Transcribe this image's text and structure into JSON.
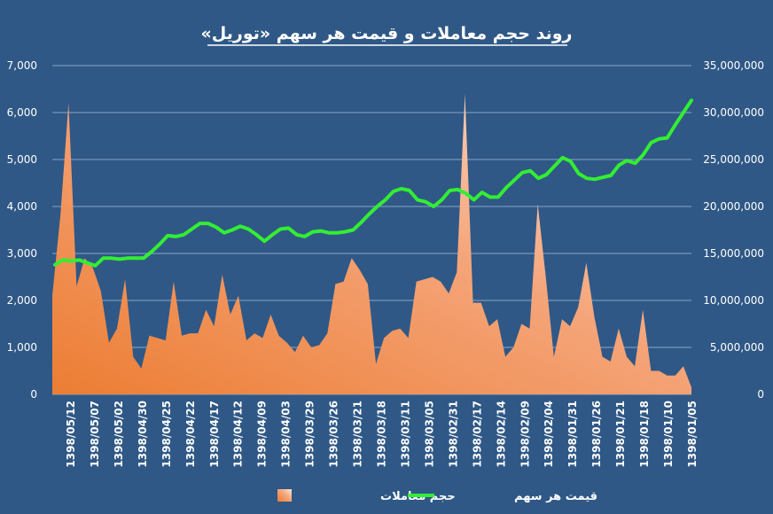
{
  "chart_data": {
    "type": "area+line",
    "title": "روند حجم معاملات و قیمت هر سهم «توریل»",
    "grid": true,
    "legend_position": "bottom",
    "y_left": {
      "ylim": [
        0,
        7000
      ],
      "ticks": [
        "0",
        "1,000",
        "2,000",
        "3,000",
        "4,000",
        "5,000",
        "6,000",
        "7,000"
      ]
    },
    "y_right": {
      "ylim": [
        0,
        35000000
      ],
      "ticks": [
        "0",
        "5,000,000",
        "10,000,000",
        "15,000,000",
        "20,000,000",
        "25,000,000",
        "30,000,000",
        "35,000,000"
      ]
    },
    "x_tick_labels": [
      "1398/05/12",
      "1398/05/07",
      "1398/05/02",
      "1398/04/30",
      "1398/04/25",
      "1398/04/22",
      "1398/04/17",
      "1398/04/12",
      "1398/04/09",
      "1398/04/03",
      "1398/03/29",
      "1398/03/26",
      "1398/03/21",
      "1398/03/18",
      "1398/03/11",
      "1398/03/05",
      "1398/02/31",
      "1398/02/17",
      "1398/02/14",
      "1398/02/09",
      "1398/02/04",
      "1398/01/31",
      "1398/01/26",
      "1398/01/21",
      "1398/01/18",
      "1398/01/10",
      "1398/01/05"
    ],
    "series": [
      {
        "name": "حجم معاملات",
        "type": "area",
        "axis": "left",
        "color": "#f0925a",
        "values": [
          2100,
          3800,
          6200,
          2300,
          2900,
          2700,
          2200,
          1100,
          1400,
          2450,
          800,
          550,
          1250,
          1200,
          1150,
          2400,
          1250,
          1300,
          1300,
          1800,
          1450,
          2550,
          1700,
          2100,
          1150,
          1300,
          1200,
          1700,
          1250,
          1100,
          900,
          1250,
          1000,
          1050,
          1300,
          2350,
          2400,
          2900,
          2650,
          2350,
          650,
          1200,
          1350,
          1400,
          1200,
          2400,
          2450,
          2500,
          2400,
          2150,
          2600,
          6400,
          1950,
          1950,
          1450,
          1600,
          800,
          1000,
          1500,
          1400,
          4050,
          2500,
          800,
          1600,
          1450,
          1850,
          2800,
          1650,
          800,
          700,
          1400,
          800,
          600,
          1800,
          500,
          500,
          400,
          400,
          600,
          150
        ]
      },
      {
        "name": "قیمت هر سهم",
        "type": "line",
        "axis": "right",
        "color": "#33ee33",
        "values": [
          13800000,
          14300000,
          14200000,
          14300000,
          14000000,
          13700000,
          14500000,
          14500000,
          14400000,
          14500000,
          14500000,
          14500000,
          15200000,
          16000000,
          16900000,
          16800000,
          17000000,
          17600000,
          18200000,
          18200000,
          17800000,
          17200000,
          17500000,
          17900000,
          17600000,
          17000000,
          16300000,
          17000000,
          17600000,
          17700000,
          17000000,
          16800000,
          17300000,
          17400000,
          17200000,
          17200000,
          17300000,
          17500000,
          18300000,
          19200000,
          20000000,
          20700000,
          21600000,
          21900000,
          21700000,
          20700000,
          20500000,
          20000000,
          20700000,
          21700000,
          21800000,
          21400000,
          20700000,
          21500000,
          21000000,
          21000000,
          22000000,
          22800000,
          23600000,
          23800000,
          23000000,
          23400000,
          24300000,
          25200000,
          24800000,
          23500000,
          23000000,
          22900000,
          23100000,
          23300000,
          24400000,
          24900000,
          24600000,
          25500000,
          26800000,
          27200000,
          27300000,
          28700000,
          30000000,
          31300000
        ]
      }
    ]
  }
}
